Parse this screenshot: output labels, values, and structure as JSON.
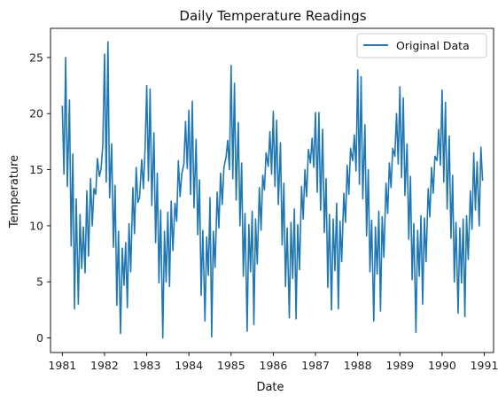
{
  "chart_data": {
    "type": "line",
    "title": "Daily Temperature Readings",
    "xlabel": "Date",
    "ylabel": "Temperature",
    "xlim": [
      1980.72,
      1991.22
    ],
    "ylim": [
      -1.3,
      27.6
    ],
    "xticks": [
      1981,
      1982,
      1983,
      1984,
      1985,
      1986,
      1987,
      1988,
      1989,
      1990,
      1991
    ],
    "xtick_labels": [
      "1981",
      "1982",
      "1983",
      "1984",
      "1985",
      "1986",
      "1987",
      "1988",
      "1989",
      "1990",
      "1991"
    ],
    "yticks": [
      0,
      5,
      10,
      15,
      20,
      25
    ],
    "ytick_labels": [
      "0",
      "5",
      "10",
      "15",
      "20",
      "25"
    ],
    "grid": false,
    "legend": {
      "position": "top-right"
    },
    "series": [
      {
        "name": "Original Data",
        "color": "#1f77b4",
        "sampling": "daily readings 1981-01-01 to 1990-12-31; points below are approximate sampled values read from the plot",
        "x": [
          1981.0,
          1981.04,
          1981.08,
          1981.12,
          1981.17,
          1981.21,
          1981.25,
          1981.29,
          1981.33,
          1981.38,
          1981.42,
          1981.46,
          1981.5,
          1981.54,
          1981.58,
          1981.62,
          1981.67,
          1981.71,
          1981.75,
          1981.79,
          1981.83,
          1981.88,
          1981.92,
          1981.96,
          1982.0,
          1982.04,
          1982.08,
          1982.12,
          1982.17,
          1982.21,
          1982.25,
          1982.29,
          1982.33,
          1982.38,
          1982.42,
          1982.46,
          1982.5,
          1982.54,
          1982.58,
          1982.62,
          1982.67,
          1982.71,
          1982.75,
          1982.79,
          1982.83,
          1982.88,
          1982.92,
          1982.96,
          1983.0,
          1983.04,
          1983.08,
          1983.12,
          1983.17,
          1983.21,
          1983.25,
          1983.29,
          1983.33,
          1983.38,
          1983.42,
          1983.46,
          1983.5,
          1983.54,
          1983.58,
          1983.62,
          1983.67,
          1983.71,
          1983.75,
          1983.79,
          1983.83,
          1983.88,
          1983.92,
          1983.96,
          1984.0,
          1984.04,
          1984.08,
          1984.12,
          1984.17,
          1984.21,
          1984.25,
          1984.29,
          1984.33,
          1984.38,
          1984.42,
          1984.46,
          1984.5,
          1984.54,
          1984.58,
          1984.62,
          1984.67,
          1984.71,
          1984.75,
          1984.79,
          1984.83,
          1984.88,
          1984.92,
          1984.96,
          1985.0,
          1985.04,
          1985.08,
          1985.12,
          1985.17,
          1985.21,
          1985.25,
          1985.29,
          1985.33,
          1985.38,
          1985.42,
          1985.46,
          1985.5,
          1985.54,
          1985.58,
          1985.62,
          1985.67,
          1985.71,
          1985.75,
          1985.79,
          1985.83,
          1985.88,
          1985.92,
          1985.96,
          1986.0,
          1986.04,
          1986.08,
          1986.12,
          1986.17,
          1986.21,
          1986.25,
          1986.29,
          1986.33,
          1986.38,
          1986.42,
          1986.46,
          1986.5,
          1986.54,
          1986.58,
          1986.62,
          1986.67,
          1986.71,
          1986.75,
          1986.79,
          1986.83,
          1986.88,
          1986.92,
          1986.96,
          1987.0,
          1987.04,
          1987.08,
          1987.12,
          1987.17,
          1987.21,
          1987.25,
          1987.29,
          1987.33,
          1987.38,
          1987.42,
          1987.46,
          1987.5,
          1987.54,
          1987.58,
          1987.62,
          1987.67,
          1987.71,
          1987.75,
          1987.79,
          1987.83,
          1987.88,
          1987.92,
          1987.96,
          1988.0,
          1988.04,
          1988.08,
          1988.12,
          1988.17,
          1988.21,
          1988.25,
          1988.29,
          1988.33,
          1988.38,
          1988.42,
          1988.46,
          1988.5,
          1988.54,
          1988.58,
          1988.62,
          1988.67,
          1988.71,
          1988.75,
          1988.79,
          1988.83,
          1988.88,
          1988.92,
          1988.96,
          1989.0,
          1989.04,
          1989.08,
          1989.12,
          1989.17,
          1989.21,
          1989.25,
          1989.29,
          1989.33,
          1989.38,
          1989.42,
          1989.46,
          1989.5,
          1989.54,
          1989.58,
          1989.62,
          1989.67,
          1989.71,
          1989.75,
          1989.79,
          1989.83,
          1989.88,
          1989.92,
          1989.96,
          1990.0,
          1990.04,
          1990.08,
          1990.12,
          1990.17,
          1990.21,
          1990.25,
          1990.29,
          1990.33,
          1990.38,
          1990.42,
          1990.46,
          1990.5,
          1990.54,
          1990.58,
          1990.62,
          1990.67,
          1990.71,
          1990.75,
          1990.79,
          1990.83,
          1990.88,
          1990.92,
          1990.96
        ],
        "y": [
          20.7,
          14.6,
          25.0,
          13.5,
          21.2,
          8.2,
          16.4,
          2.6,
          12.4,
          3.0,
          11.0,
          6.2,
          9.9,
          5.8,
          13.1,
          7.3,
          14.2,
          10.0,
          13.3,
          12.8,
          16.0,
          14.4,
          15.1,
          17.2,
          25.3,
          13.9,
          26.4,
          12.5,
          17.3,
          8.1,
          13.6,
          2.9,
          9.5,
          0.4,
          8.0,
          4.7,
          8.5,
          2.7,
          10.2,
          5.9,
          13.4,
          9.3,
          15.2,
          12.1,
          12.5,
          15.9,
          13.3,
          16.8,
          22.5,
          14.0,
          22.2,
          11.8,
          18.3,
          8.5,
          14.7,
          4.9,
          11.4,
          0.0,
          9.5,
          5.0,
          11.2,
          4.6,
          12.2,
          7.8,
          12.0,
          10.4,
          15.8,
          12.6,
          14.6,
          15.5,
          19.3,
          15.1,
          20.3,
          12.8,
          21.1,
          11.6,
          17.7,
          9.2,
          14.1,
          3.8,
          9.6,
          1.5,
          9.0,
          5.6,
          12.5,
          0.1,
          9.5,
          6.3,
          13.0,
          9.8,
          14.7,
          11.9,
          15.2,
          16.1,
          17.6,
          15.0,
          24.3,
          14.2,
          22.7,
          12.3,
          19.2,
          10.0,
          15.6,
          5.5,
          11.1,
          0.6,
          10.1,
          5.9,
          11.3,
          1.2,
          10.6,
          6.6,
          13.4,
          9.6,
          14.5,
          13.2,
          16.5,
          15.3,
          18.4,
          14.6,
          20.2,
          13.5,
          19.4,
          11.9,
          17.4,
          8.3,
          13.8,
          4.6,
          9.8,
          1.8,
          10.3,
          5.3,
          11.5,
          1.7,
          10.1,
          6.1,
          13.5,
          10.6,
          15.0,
          12.6,
          16.8,
          15.6,
          17.8,
          15.2,
          20.1,
          13.0,
          20.1,
          11.4,
          18.6,
          9.4,
          14.2,
          4.5,
          11.0,
          2.5,
          10.6,
          6.0,
          12.0,
          2.6,
          10.4,
          6.8,
          12.9,
          10.3,
          15.4,
          12.8,
          16.9,
          15.8,
          18.1,
          14.9,
          23.9,
          13.7,
          23.3,
          12.4,
          19.0,
          9.1,
          15.0,
          5.9,
          10.5,
          1.5,
          9.9,
          5.7,
          11.3,
          2.4,
          10.8,
          7.2,
          13.8,
          11.1,
          15.6,
          13.4,
          16.9,
          16.2,
          20.0,
          15.5,
          22.4,
          14.3,
          21.4,
          12.7,
          17.3,
          8.8,
          14.4,
          5.2,
          10.2,
          0.5,
          9.6,
          5.5,
          10.9,
          3.0,
          10.7,
          6.8,
          13.3,
          10.8,
          15.2,
          12.9,
          16.2,
          15.8,
          18.6,
          15.4,
          22.1,
          13.9,
          21.0,
          11.5,
          18.0,
          8.9,
          14.5,
          5.0,
          10.3,
          2.2,
          9.8,
          4.9,
          10.6,
          1.9,
          10.9,
          7.0,
          13.1,
          9.7,
          16.5,
          11.4,
          15.7,
          10.0,
          17.0,
          14.0
        ]
      }
    ]
  }
}
